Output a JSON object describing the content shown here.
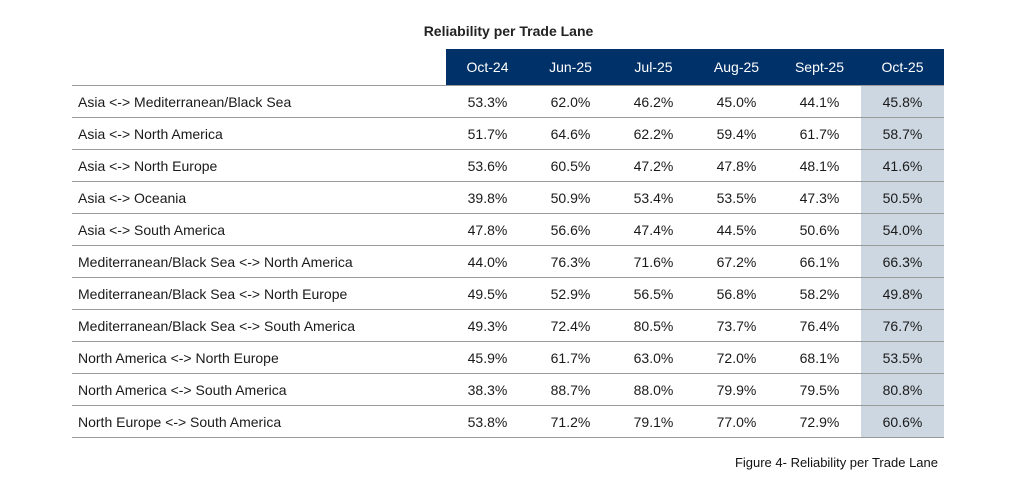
{
  "chart_data": {
    "type": "table",
    "title": "Reliability per Trade Lane",
    "columns": [
      "Oct-24",
      "Jun-25",
      "Jul-25",
      "Aug-25",
      "Sept-25",
      "Oct-25"
    ],
    "highlighted_column": "Oct-25",
    "rows": [
      {
        "lane": "Asia <-> Mediterranean/Black Sea",
        "values": [
          "53.3%",
          "62.0%",
          "46.2%",
          "45.0%",
          "44.1%",
          "45.8%"
        ]
      },
      {
        "lane": "Asia <-> North America",
        "values": [
          "51.7%",
          "64.6%",
          "62.2%",
          "59.4%",
          "61.7%",
          "58.7%"
        ]
      },
      {
        "lane": "Asia <-> North Europe",
        "values": [
          "53.6%",
          "60.5%",
          "47.2%",
          "47.8%",
          "48.1%",
          "41.6%"
        ]
      },
      {
        "lane": "Asia <-> Oceania",
        "values": [
          "39.8%",
          "50.9%",
          "53.4%",
          "53.5%",
          "47.3%",
          "50.5%"
        ]
      },
      {
        "lane": "Asia <-> South America",
        "values": [
          "47.8%",
          "56.6%",
          "47.4%",
          "44.5%",
          "50.6%",
          "54.0%"
        ]
      },
      {
        "lane": "Mediterranean/Black Sea <-> North America",
        "values": [
          "44.0%",
          "76.3%",
          "71.6%",
          "67.2%",
          "66.1%",
          "66.3%"
        ]
      },
      {
        "lane": "Mediterranean/Black Sea <-> North Europe",
        "values": [
          "49.5%",
          "52.9%",
          "56.5%",
          "56.8%",
          "58.2%",
          "49.8%"
        ]
      },
      {
        "lane": "Mediterranean/Black Sea <-> South America",
        "values": [
          "49.3%",
          "72.4%",
          "80.5%",
          "73.7%",
          "76.4%",
          "76.7%"
        ]
      },
      {
        "lane": "North America <-> North Europe",
        "values": [
          "45.9%",
          "61.7%",
          "63.0%",
          "72.0%",
          "68.1%",
          "53.5%"
        ]
      },
      {
        "lane": "North America <-> South America",
        "values": [
          "38.3%",
          "88.7%",
          "88.0%",
          "79.9%",
          "79.5%",
          "80.8%"
        ]
      },
      {
        "lane": "North Europe <-> South America",
        "values": [
          "53.8%",
          "71.2%",
          "79.1%",
          "77.0%",
          "72.9%",
          "60.6%"
        ]
      }
    ]
  },
  "caption": "Figure 4- Reliability per Trade Lane",
  "colors": {
    "header_bg": "#003169",
    "header_text": "#ffffff",
    "highlight_bg": "#cdd7e1"
  }
}
